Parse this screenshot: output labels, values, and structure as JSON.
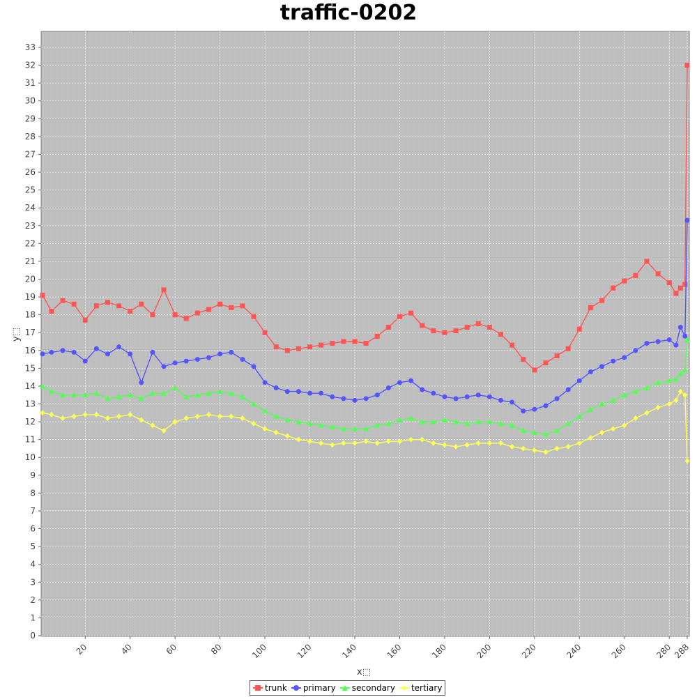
{
  "chart_data": {
    "type": "line",
    "title": "traffic-0202",
    "xlabel": "x⬚",
    "ylabel": "y⬚",
    "xlim": [
      1,
      288
    ],
    "ylim": [
      0,
      33.9
    ],
    "x_ticks": [
      20,
      40,
      60,
      80,
      100,
      120,
      140,
      160,
      180,
      200,
      220,
      240,
      260,
      280,
      288
    ],
    "y_ticks": [
      0,
      1,
      2,
      3,
      4,
      5,
      6,
      7,
      8,
      9,
      10,
      11,
      12,
      13,
      14,
      15,
      16,
      17,
      18,
      19,
      20,
      21,
      22,
      23,
      24,
      25,
      26,
      27,
      28,
      29,
      30,
      31,
      32,
      33
    ],
    "grid": true,
    "legend_position": "bottom",
    "x": [
      1,
      5,
      10,
      15,
      20,
      25,
      30,
      35,
      40,
      45,
      50,
      55,
      60,
      65,
      70,
      75,
      80,
      85,
      90,
      95,
      100,
      105,
      110,
      115,
      120,
      125,
      130,
      135,
      140,
      145,
      150,
      155,
      160,
      165,
      170,
      175,
      180,
      185,
      190,
      195,
      200,
      205,
      210,
      215,
      220,
      225,
      230,
      235,
      240,
      245,
      250,
      255,
      260,
      265,
      270,
      275,
      280,
      283,
      285,
      287,
      288
    ],
    "series": [
      {
        "name": "trunk",
        "color": "#ff5555",
        "marker": "square",
        "values": [
          19.1,
          18.2,
          18.8,
          18.6,
          17.7,
          18.5,
          18.7,
          18.5,
          18.2,
          18.6,
          18.0,
          19.4,
          18.0,
          17.8,
          18.1,
          18.3,
          18.6,
          18.4,
          18.5,
          17.9,
          17.0,
          16.2,
          16.0,
          16.1,
          16.2,
          16.3,
          16.4,
          16.5,
          16.5,
          16.4,
          16.8,
          17.3,
          17.9,
          18.1,
          17.4,
          17.1,
          17.0,
          17.1,
          17.3,
          17.5,
          17.3,
          16.9,
          16.3,
          15.5,
          14.9,
          15.3,
          15.7,
          16.1,
          17.2,
          18.4,
          18.8,
          19.5,
          19.9,
          20.2,
          21.0,
          20.3,
          19.8,
          19.2,
          19.5,
          19.7,
          32.0
        ]
      },
      {
        "name": "primary",
        "color": "#5555ff",
        "marker": "circle",
        "values": [
          15.8,
          15.9,
          16.0,
          15.9,
          15.4,
          16.1,
          15.8,
          16.2,
          15.8,
          14.2,
          15.9,
          15.1,
          15.3,
          15.4,
          15.5,
          15.6,
          15.8,
          15.9,
          15.5,
          15.1,
          14.2,
          13.9,
          13.7,
          13.7,
          13.6,
          13.6,
          13.4,
          13.3,
          13.2,
          13.3,
          13.5,
          13.9,
          14.2,
          14.3,
          13.8,
          13.6,
          13.4,
          13.3,
          13.4,
          13.5,
          13.4,
          13.2,
          13.1,
          12.6,
          12.7,
          12.9,
          13.3,
          13.8,
          14.3,
          14.8,
          15.1,
          15.4,
          15.6,
          16.0,
          16.4,
          16.5,
          16.6,
          16.3,
          17.3,
          16.8,
          23.3
        ]
      },
      {
        "name": "secondary",
        "color": "#55ff55",
        "marker": "triangle",
        "values": [
          14.0,
          13.7,
          13.5,
          13.5,
          13.5,
          13.6,
          13.3,
          13.4,
          13.5,
          13.3,
          13.6,
          13.6,
          13.9,
          13.4,
          13.5,
          13.6,
          13.7,
          13.6,
          13.4,
          13.0,
          12.6,
          12.3,
          12.1,
          12.0,
          11.9,
          11.8,
          11.7,
          11.6,
          11.6,
          11.6,
          11.8,
          11.9,
          12.1,
          12.2,
          12.0,
          12.0,
          12.1,
          12.0,
          11.9,
          12.0,
          12.0,
          11.9,
          11.8,
          11.5,
          11.4,
          11.3,
          11.5,
          11.9,
          12.3,
          12.7,
          13.0,
          13.2,
          13.5,
          13.7,
          13.9,
          14.2,
          14.3,
          14.4,
          14.7,
          14.9,
          16.6
        ]
      },
      {
        "name": "tertiary",
        "color": "#ffff55",
        "marker": "diamond",
        "values": [
          12.5,
          12.4,
          12.2,
          12.3,
          12.4,
          12.4,
          12.2,
          12.3,
          12.4,
          12.1,
          11.8,
          11.5,
          12.0,
          12.2,
          12.3,
          12.4,
          12.3,
          12.3,
          12.2,
          11.9,
          11.6,
          11.4,
          11.2,
          11.0,
          10.9,
          10.8,
          10.7,
          10.8,
          10.8,
          10.9,
          10.8,
          10.9,
          10.9,
          11.0,
          11.0,
          10.8,
          10.7,
          10.6,
          10.7,
          10.8,
          10.8,
          10.8,
          10.6,
          10.5,
          10.4,
          10.3,
          10.5,
          10.6,
          10.8,
          11.1,
          11.4,
          11.6,
          11.8,
          12.2,
          12.5,
          12.8,
          13.0,
          13.2,
          13.7,
          13.5,
          9.8
        ]
      }
    ]
  }
}
